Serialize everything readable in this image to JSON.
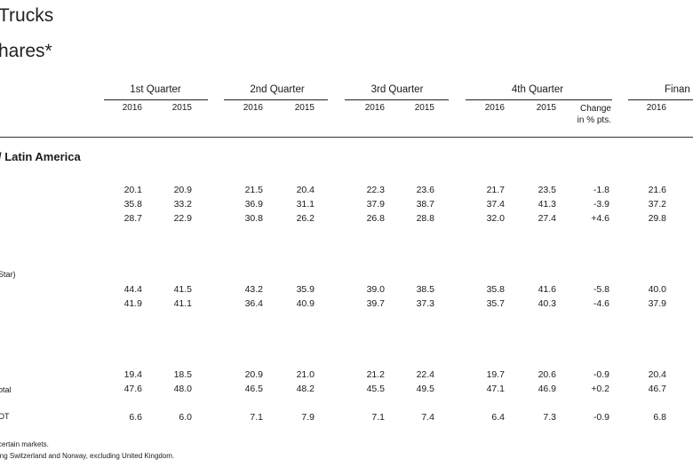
{
  "title_line1": "Trucks",
  "title_line2": "hares*",
  "header": {
    "quarters": [
      "1st Quarter",
      "2nd Quarter",
      "3rd Quarter",
      "4th Quarter",
      "Finan"
    ],
    "years": [
      "2016",
      "2015",
      "2016",
      "2015",
      "2016",
      "2015",
      "2016",
      "2015",
      "2016"
    ],
    "change_line1": "Change",
    "change_line2": "in % pts."
  },
  "section_title": "/ Latin America",
  "row_labels": [
    "'",
    "Star)",
    "otal",
    "OT"
  ],
  "rows": [
    [
      "20.1",
      "20.9",
      "21.5",
      "20.4",
      "22.3",
      "23.6",
      "21.7",
      "23.5",
      "-1.8",
      "21.6"
    ],
    [
      "35.8",
      "33.2",
      "36.9",
      "31.1",
      "37.9",
      "38.7",
      "37.4",
      "41.3",
      "-3.9",
      "37.2"
    ],
    [
      "28.7",
      "22.9",
      "30.8",
      "26.2",
      "26.8",
      "28.8",
      "32.0",
      "27.4",
      "+4.6",
      "29.8"
    ],
    [
      "44.4",
      "41.5",
      "43.2",
      "35.9",
      "39.0",
      "38.5",
      "35.8",
      "41.6",
      "-5.8",
      "40.0"
    ],
    [
      "41.9",
      "41.1",
      "36.4",
      "40.9",
      "39.7",
      "37.3",
      "35.7",
      "40.3",
      "-4.6",
      "37.9"
    ],
    [
      "19.4",
      "18.5",
      "20.9",
      "21.0",
      "21.2",
      "22.4",
      "19.7",
      "20.6",
      "-0.9",
      "20.4"
    ],
    [
      "47.6",
      "48.0",
      "46.5",
      "48.2",
      "45.5",
      "49.5",
      "47.1",
      "46.9",
      "+0.2",
      "46.7"
    ],
    [
      "6.6",
      "6.0",
      "7.1",
      "7.9",
      "7.1",
      "7.4",
      "6.4",
      "7.3",
      "-0.9",
      "6.8"
    ]
  ],
  "footnotes": [
    "certain markets.",
    "ing Switzerland and Norway, excluding United Kingdom."
  ]
}
